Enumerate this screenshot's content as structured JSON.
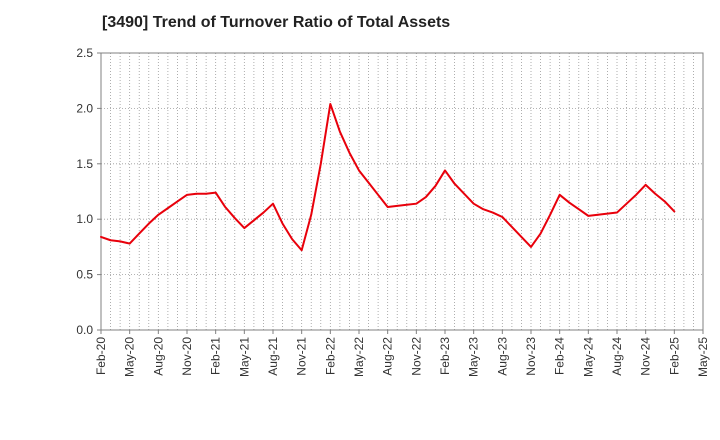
{
  "chart_data": {
    "type": "line",
    "title": "[3490]  Trend of Turnover Ratio of Total Assets",
    "xlabel": "",
    "ylabel": "",
    "ylim": [
      0,
      2.5
    ],
    "yticks": [
      "0.0",
      "0.5",
      "1.0",
      "1.5",
      "2.0",
      "2.5"
    ],
    "x_tick_labels": [
      "Feb-20",
      "May-20",
      "Aug-20",
      "Nov-20",
      "Feb-21",
      "May-21",
      "Aug-21",
      "Nov-21",
      "Feb-22",
      "May-22",
      "Aug-22",
      "Nov-22",
      "Feb-23",
      "May-23",
      "Aug-23",
      "Nov-23",
      "Feb-24",
      "May-24",
      "Aug-24",
      "Nov-24",
      "Feb-25",
      "May-25"
    ],
    "grid": true,
    "line_color": "#e8000b",
    "series": [
      {
        "x": [
          "Feb-20",
          "Mar-20",
          "Apr-20",
          "May-20",
          "Jun-20",
          "Jul-20",
          "Aug-20",
          "Sep-20",
          "Oct-20",
          "Nov-20",
          "Dec-20",
          "Jan-21",
          "Feb-21",
          "Mar-21",
          "Apr-21",
          "May-21",
          "Jun-21",
          "Jul-21",
          "Aug-21",
          "Sep-21",
          "Oct-21",
          "Nov-21",
          "Dec-21",
          "Jan-22",
          "Feb-22",
          "Mar-22",
          "Apr-22",
          "May-22",
          "Jun-22",
          "Jul-22",
          "Aug-22",
          "Sep-22",
          "Oct-22",
          "Nov-22",
          "Dec-22",
          "Jan-23",
          "Feb-23",
          "Mar-23",
          "Apr-23",
          "May-23",
          "Jun-23",
          "Jul-23",
          "Aug-23",
          "Sep-23",
          "Oct-23",
          "Nov-23",
          "Dec-23",
          "Jan-24",
          "Feb-24",
          "Mar-24",
          "Apr-24",
          "May-24",
          "Jun-24",
          "Jul-24",
          "Aug-24",
          "Sep-24",
          "Oct-24",
          "Nov-24",
          "Dec-24",
          "Jan-25",
          "Feb-25"
        ],
        "values": [
          0.84,
          0.81,
          0.8,
          0.78,
          0.87,
          0.96,
          1.04,
          1.1,
          1.16,
          1.22,
          1.23,
          1.23,
          1.24,
          1.11,
          1.01,
          0.92,
          0.99,
          1.06,
          1.14,
          0.96,
          0.82,
          0.72,
          1.04,
          1.5,
          2.04,
          1.79,
          1.6,
          1.44,
          1.33,
          1.22,
          1.11,
          1.12,
          1.13,
          1.14,
          1.2,
          1.3,
          1.44,
          1.32,
          1.23,
          1.14,
          1.09,
          1.06,
          1.02,
          0.93,
          0.84,
          0.75,
          0.87,
          1.04,
          1.22,
          1.15,
          1.09,
          1.03,
          1.04,
          1.05,
          1.06,
          1.14,
          1.22,
          1.31,
          1.23,
          1.16,
          1.07
        ]
      }
    ]
  }
}
